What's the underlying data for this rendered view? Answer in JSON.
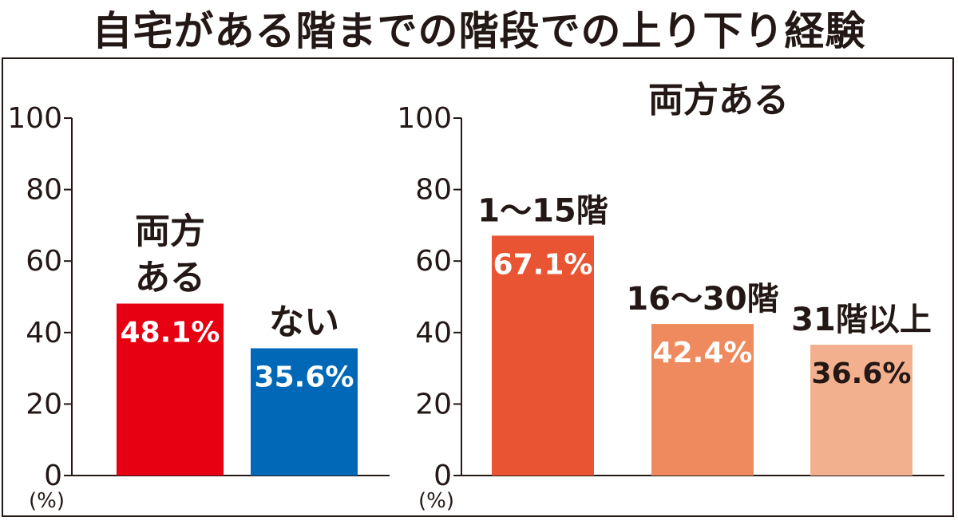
{
  "title": "自宅がある階までの階段での上り下り経験",
  "chart_data": [
    {
      "type": "bar",
      "title": "",
      "unit": "(%)",
      "ylim": [
        0,
        100
      ],
      "yticks": [
        0,
        20,
        40,
        60,
        80,
        100
      ],
      "categories": [
        [
          "両方",
          "ある"
        ],
        [
          "ない"
        ]
      ],
      "values": [
        48.1,
        35.6
      ],
      "value_labels": [
        "48.1%",
        "35.6%"
      ],
      "colors": [
        "#e60012",
        "#0068b7"
      ],
      "label_colors": [
        "#ffffff",
        "#ffffff"
      ]
    },
    {
      "type": "bar",
      "title": "両方ある",
      "unit": "(%)",
      "ylim": [
        0,
        100
      ],
      "yticks": [
        0,
        20,
        40,
        60,
        80,
        100
      ],
      "categories": [
        [
          "1〜15階"
        ],
        [
          "16〜30階"
        ],
        [
          "31階以上"
        ]
      ],
      "values": [
        67.1,
        42.4,
        36.6
      ],
      "value_labels": [
        "67.1%",
        "42.4%",
        "36.6%"
      ],
      "colors": [
        "#e95532",
        "#ee8a5e",
        "#f3b08f"
      ],
      "label_colors": [
        "#ffffff",
        "#ffffff",
        "#231815"
      ]
    }
  ]
}
